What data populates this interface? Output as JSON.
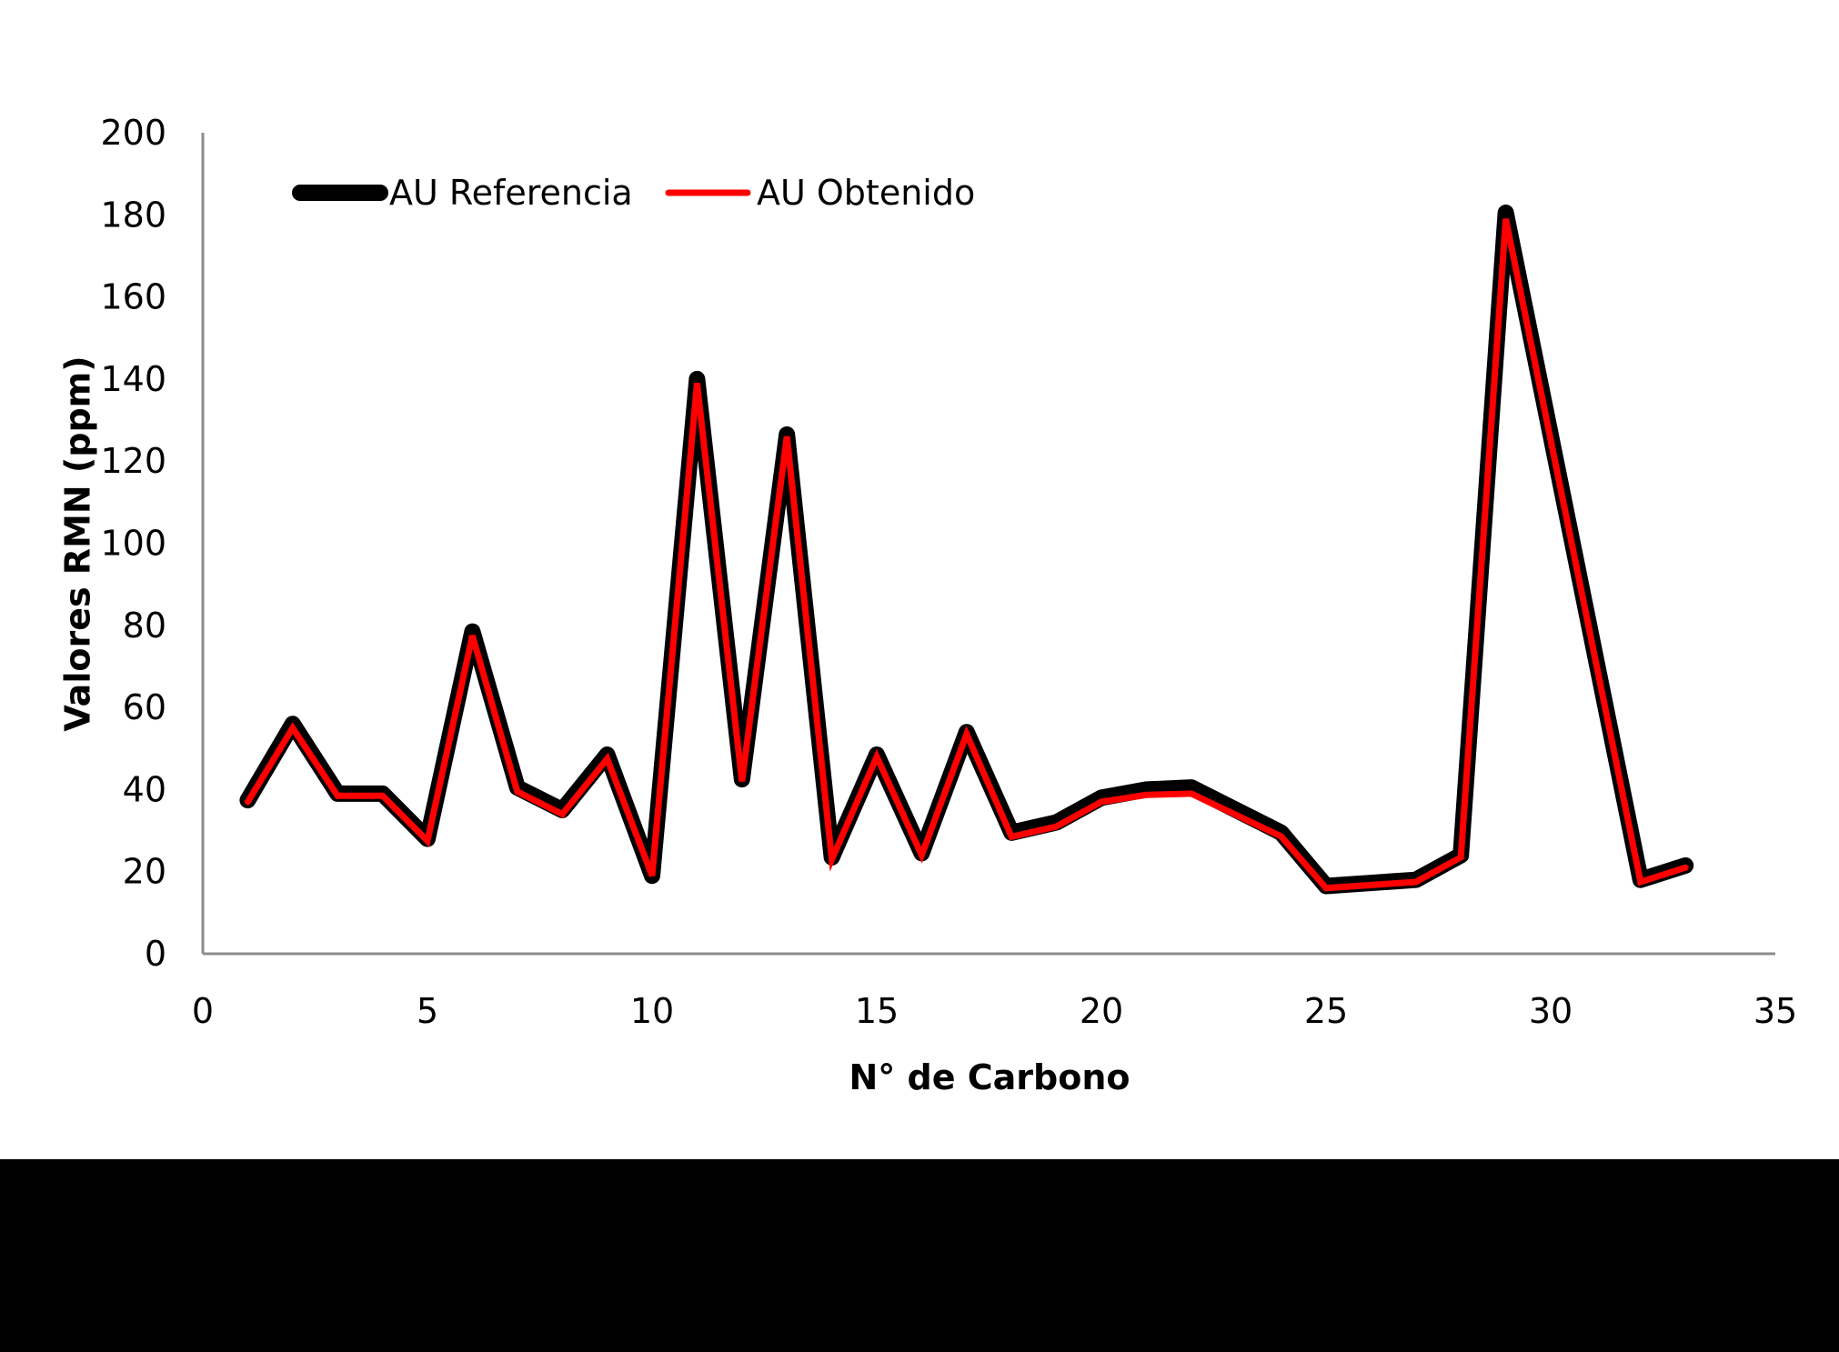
{
  "chart_data": {
    "type": "line",
    "title": "",
    "xlabel": "N° de Carbono",
    "ylabel": "Valores RMN (ppm)",
    "xlim": [
      0,
      35
    ],
    "ylim": [
      0,
      200
    ],
    "x_ticks": [
      0,
      5,
      10,
      15,
      20,
      25,
      30,
      35
    ],
    "y_ticks": [
      0,
      20,
      40,
      60,
      80,
      100,
      120,
      140,
      160,
      180,
      200
    ],
    "grid": false,
    "legend_position": "top-left inside",
    "x": [
      1,
      2,
      3,
      4,
      5,
      6,
      7,
      8,
      9,
      10,
      11,
      12,
      13,
      14,
      15,
      16,
      17,
      18,
      19,
      20,
      21,
      22,
      24,
      25,
      27,
      28,
      29,
      32,
      33
    ],
    "series": [
      {
        "name": "AU Referencia",
        "color": "#000000",
        "line_width": 18,
        "values": [
          37.4,
          56,
          39,
          39,
          28,
          78.5,
          40.5,
          35,
          48.5,
          19,
          140,
          42.5,
          126.5,
          23.5,
          48.5,
          24.5,
          54,
          29.5,
          32,
          38,
          40,
          40.5,
          29.5,
          16.5,
          18,
          24,
          180.5,
          18,
          21.5
        ]
      },
      {
        "name": "AU Obtenido",
        "color": "#ff0000",
        "line_width": 7,
        "values": [
          37,
          55,
          38.5,
          38.5,
          27.5,
          77.5,
          39.5,
          34,
          47.5,
          19,
          139,
          42,
          126,
          23,
          48,
          24,
          53.5,
          28.5,
          31,
          37,
          38.7,
          39,
          28.6,
          16,
          17.5,
          23.5,
          179,
          17.5,
          21
        ]
      }
    ]
  },
  "axes": {
    "x_tick_labels": [
      "0",
      "5",
      "10",
      "15",
      "20",
      "25",
      "30",
      "35"
    ],
    "y_tick_labels": [
      "0",
      "20",
      "40",
      "60",
      "80",
      "100",
      "120",
      "140",
      "160",
      "180",
      "200"
    ],
    "x_title": "N° de Carbono",
    "y_title": "Valores RMN (ppm)",
    "axis_color": "#8c8c8c"
  },
  "legend": {
    "items": [
      {
        "label": "AU Referencia",
        "color": "#000000"
      },
      {
        "label": "AU Obtenido",
        "color": "#ff0000"
      }
    ]
  }
}
